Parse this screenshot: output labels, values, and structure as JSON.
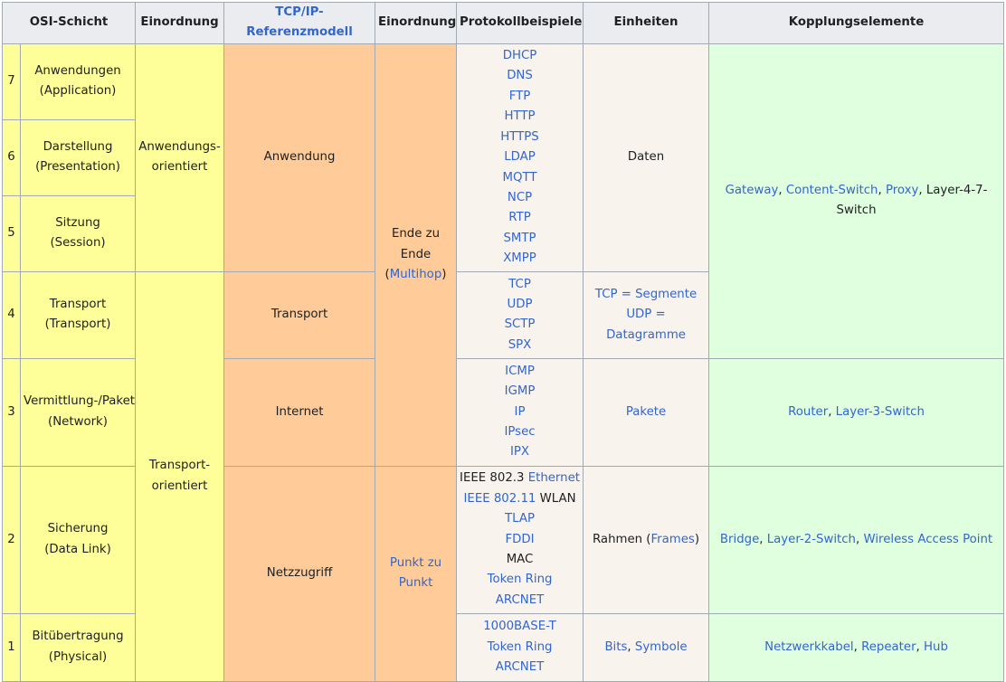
{
  "header": {
    "osi": "OSI-Schicht",
    "einordnung1": "Einordnung",
    "tcpip": "TCP/IP-Referenzmodell",
    "einordnung2": "Einordnung",
    "protokolle": "Protokollbeispiele",
    "einheiten": "Einheiten",
    "kopplung": "Kopplungselemente"
  },
  "layers": [
    {
      "num": "7",
      "name": "Anwendungen",
      "en": "(Application)"
    },
    {
      "num": "6",
      "name": "Darstellung",
      "en": "(Presentation)"
    },
    {
      "num": "5",
      "name": "Sitzung",
      "en": "(Session)"
    },
    {
      "num": "4",
      "name": "Transport",
      "en": "(Transport)"
    },
    {
      "num": "3",
      "name": "Vermittlung-/Paket",
      "en": "(Network)"
    },
    {
      "num": "2",
      "name": "Sicherung",
      "en": "(Data Link)"
    },
    {
      "num": "1",
      "name": "Bitübertragung",
      "en": "(Physical)"
    }
  ],
  "einordnung1": {
    "anwendung_l1": "Anwendungs-",
    "anwendung_l2": "orientiert",
    "transport_l1": "Transport-",
    "transport_l2": "orientiert"
  },
  "tcpip": {
    "anwendung": "Anwendung",
    "transport": "Transport",
    "internet": "Internet",
    "netzzugriff": "Netzzugriff"
  },
  "einordnung2": {
    "ende_l1": "Ende zu",
    "ende_l2": "Ende",
    "ende_open": "(",
    "ende_link": "Multihop",
    "ende_close": ")",
    "punkt_l1": "Punkt zu",
    "punkt_l2": "Punkt"
  },
  "protocols": {
    "anwendung": [
      "DHCP",
      "DNS",
      "FTP",
      "HTTP",
      "HTTPS",
      "LDAP",
      "MQTT",
      "NCP",
      "RTP",
      "SMTP",
      "XMPP"
    ],
    "transport": [
      "TCP",
      "UDP",
      "SCTP",
      "SPX"
    ],
    "internet": [
      "ICMP",
      "IGMP",
      "IP",
      "IPsec",
      "IPX"
    ],
    "sicherung_ieee8023_pre": "IEEE 802.3 ",
    "sicherung_ieee8023_link": "Ethernet",
    "sicherung_ieee80211_link": "IEEE 802.11",
    "sicherung_ieee80211_post": " WLAN",
    "sicherung_rest": [
      "TLAP",
      "FDDI"
    ],
    "sicherung_mac": "MAC",
    "sicherung_rest2": [
      "Token Ring",
      "ARCNET"
    ],
    "physical": [
      "1000BASE-T",
      "Token Ring",
      "ARCNET"
    ]
  },
  "einheiten": {
    "daten": "Daten",
    "tcp": "TCP = Segmente",
    "udp": "UDP = Datagramme",
    "pakete": "Pakete",
    "rahmen_pre": "Rahmen (",
    "rahmen_link": "Frames",
    "rahmen_post": ")",
    "bits_link": "Bits",
    "bits_sep": ", ",
    "symbole_link": "Symbole"
  },
  "kopplung": {
    "upper": [
      "Gateway",
      "Content-Switch",
      "Proxy"
    ],
    "upper_plain": "Layer-4-7-Switch",
    "network": [
      "Router",
      "Layer-3-Switch"
    ],
    "datalink": [
      "Bridge",
      "Layer-2-Switch",
      "Wireless Access Point"
    ],
    "physical": [
      "Netzwerkkabel",
      "Repeater",
      "Hub"
    ],
    "sep": ", "
  },
  "colors": {
    "header_bg": "#eaecf0",
    "yellow": "#ffff99",
    "orange": "#ffcc99",
    "protocol_bg": "#f8f3ed",
    "green": "#dfffdf",
    "link": "#3366cc",
    "border": "#a2a9b1"
  }
}
